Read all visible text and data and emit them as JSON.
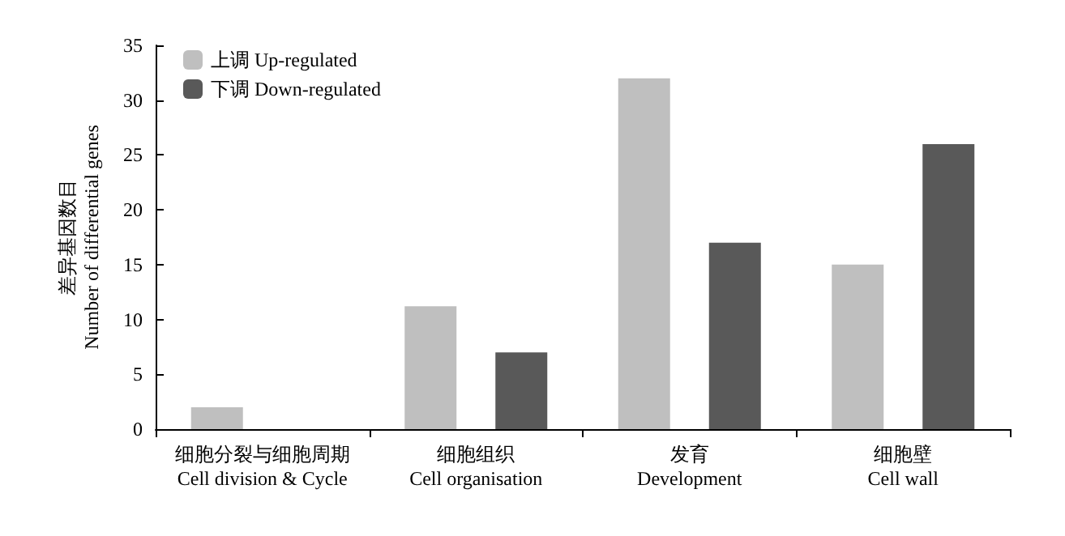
{
  "chart_data": {
    "type": "bar",
    "ylabel": "差异基因数目\nNumber of differential genes",
    "categories": [
      "细胞分裂与细胞周期\nCell division & Cycle",
      "细胞组织\nCell organisation",
      "发育\nDevelopment",
      "细胞壁\nCell wall"
    ],
    "series": [
      {
        "name": "上调 Up-regulated",
        "color": "#bfbfbf",
        "values": [
          2,
          11.2,
          32,
          15
        ]
      },
      {
        "name": "下调 Down-regulated",
        "color": "#595959",
        "values": [
          0,
          7,
          17,
          26
        ]
      }
    ],
    "ylim": [
      0,
      35
    ],
    "yticks": [
      0,
      5,
      10,
      15,
      20,
      25,
      30,
      35
    ],
    "grid": false,
    "legend": "top left"
  }
}
